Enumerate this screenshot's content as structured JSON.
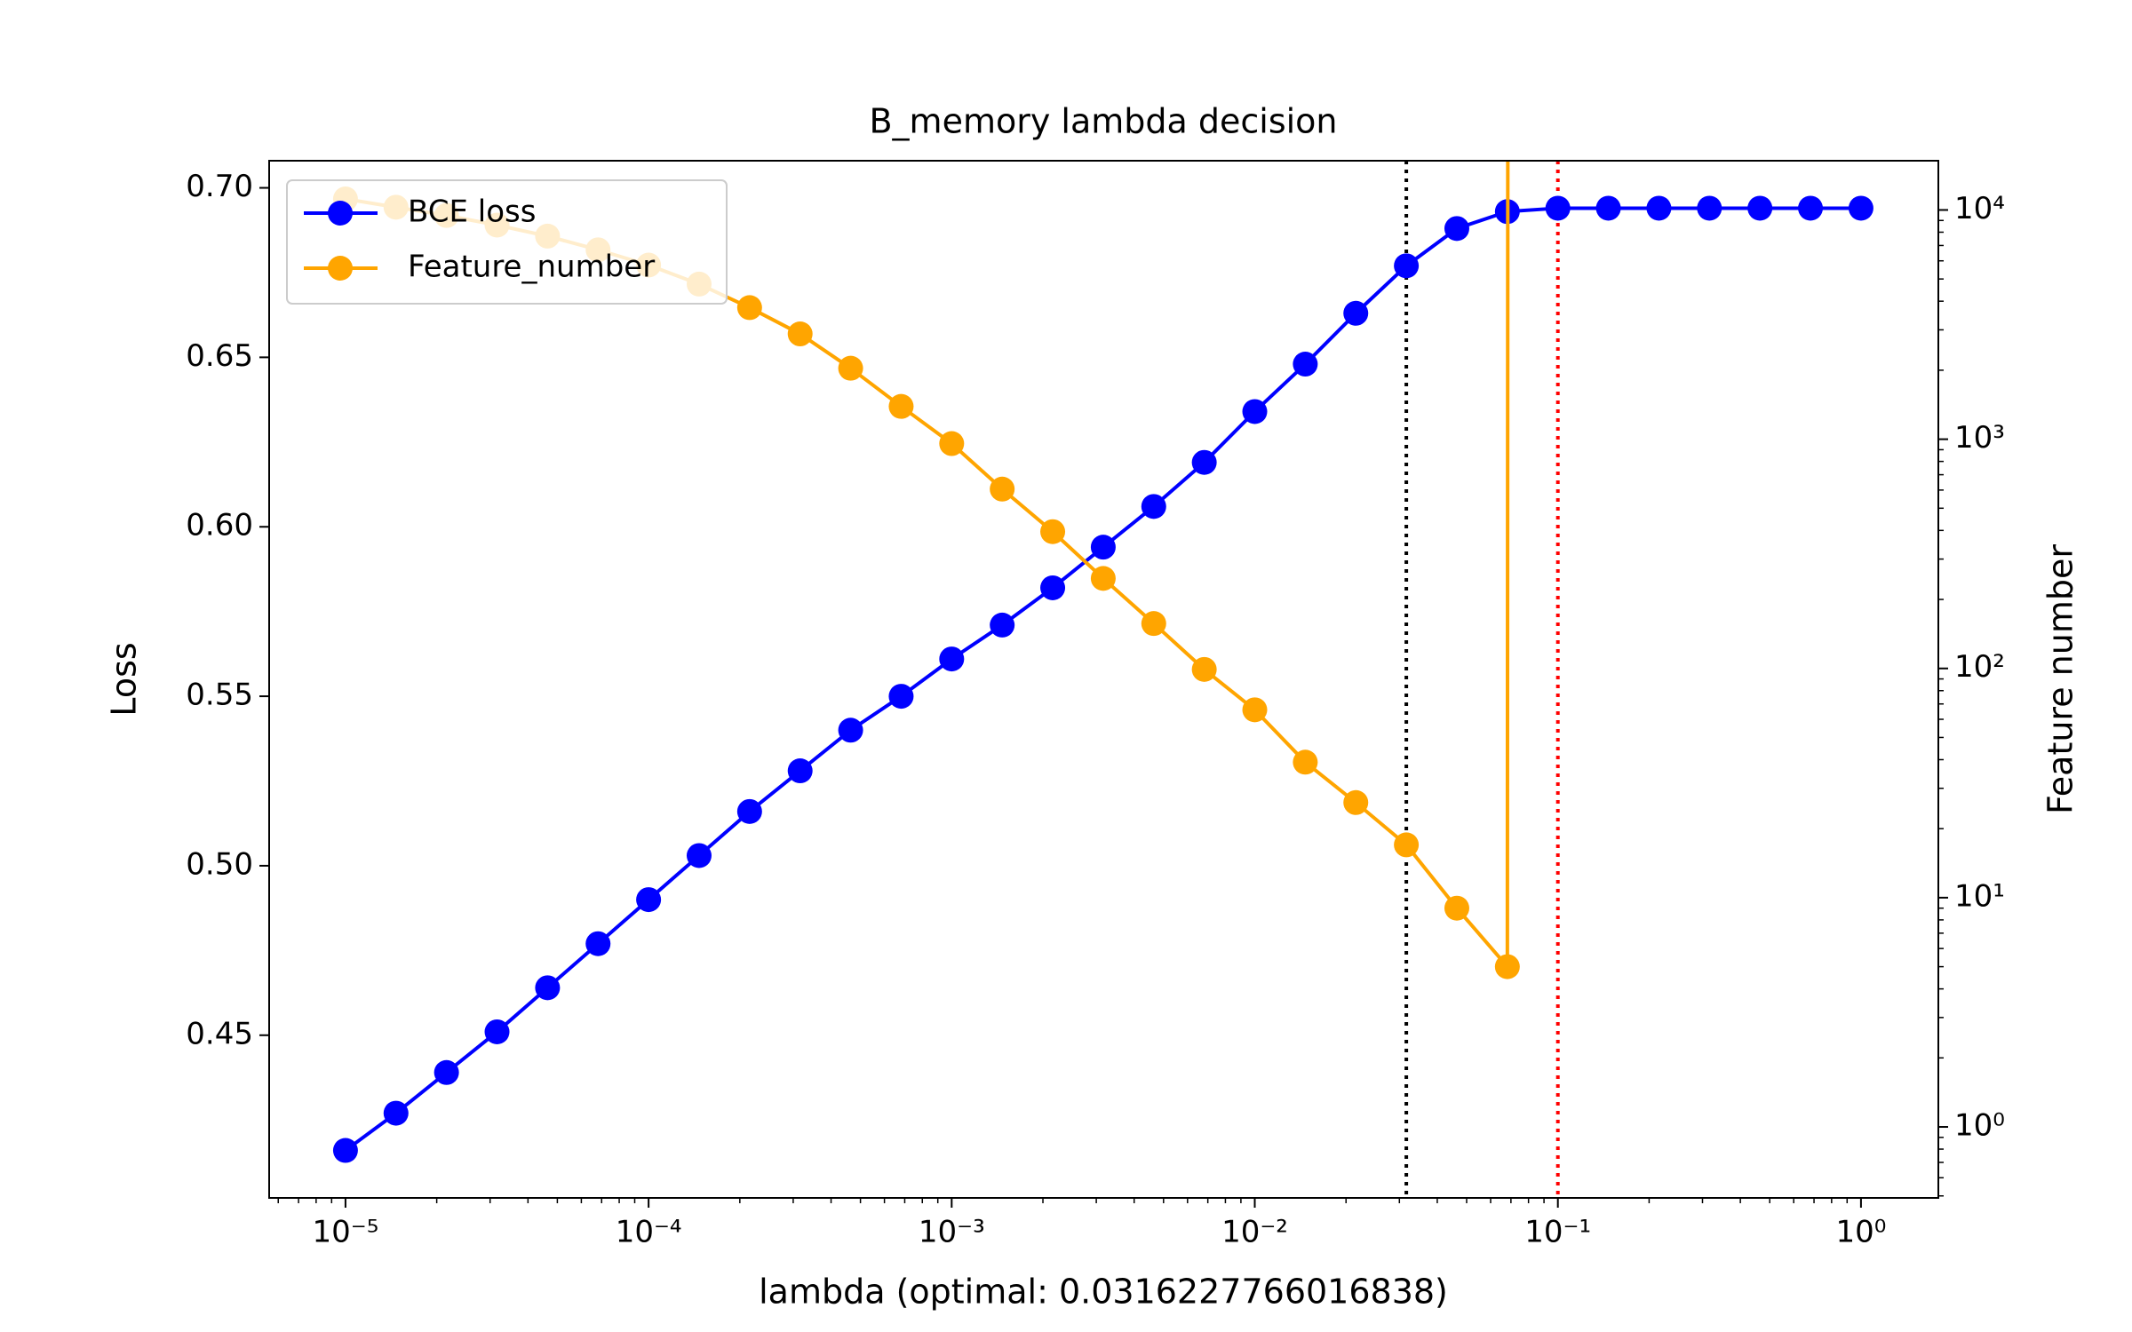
{
  "chart_data": {
    "type": "line",
    "title": "B_memory lambda decision",
    "x_label": "lambda (optimal: 0.0316227766016838)",
    "y_label": "Loss",
    "y2_label": "Feature number",
    "x": [
      1e-05,
      1.4678e-05,
      2.1544e-05,
      3.1623e-05,
      4.6416e-05,
      6.8129e-05,
      0.0001,
      0.00014678,
      0.00021544,
      0.00031623,
      0.00046416,
      0.00068129,
      0.001,
      0.0014678,
      0.0021544,
      0.0031623,
      0.0046416,
      0.0068129,
      0.01,
      0.014678,
      0.021544,
      0.031623,
      0.046416,
      0.068129,
      0.1,
      0.14678,
      0.21544,
      0.31623,
      0.46416,
      0.68129,
      1
    ],
    "series": [
      {
        "name": "BCE loss",
        "color": "#0000ff",
        "axis": "y",
        "values": [
          0.416,
          0.427,
          0.439,
          0.451,
          0.464,
          0.477,
          0.49,
          0.503,
          0.516,
          0.528,
          0.54,
          0.55,
          0.561,
          0.571,
          0.582,
          0.594,
          0.606,
          0.619,
          0.634,
          0.648,
          0.663,
          0.677,
          0.688,
          0.693,
          0.694,
          0.694,
          0.694,
          0.694,
          0.694,
          0.694,
          0.694
        ]
      },
      {
        "name": "Feature_number",
        "color": "#ffa500",
        "axis": "y2",
        "values": [
          11170,
          10280,
          9460,
          8590,
          7690,
          6700,
          5750,
          4750,
          3750,
          2880,
          2040,
          1390,
          957,
          606,
          395,
          247,
          157,
          99,
          66,
          39,
          26,
          17,
          9,
          5,
          0,
          0,
          0,
          0,
          0,
          0,
          0
        ]
      }
    ],
    "vlines": [
      {
        "x": 0.0316227766016838,
        "color": "#000000"
      },
      {
        "x": 0.1,
        "color": "#ff0000"
      }
    ],
    "x_log": true,
    "xlim": [
      5.6e-06,
      1.8
    ],
    "xticks": [
      {
        "value": 1e-05,
        "label": "10⁻⁵"
      },
      {
        "value": 0.0001,
        "label": "10⁻⁴"
      },
      {
        "value": 0.001,
        "label": "10⁻³"
      },
      {
        "value": 0.01,
        "label": "10⁻²"
      },
      {
        "value": 0.1,
        "label": "10⁻¹"
      },
      {
        "value": 1,
        "label": "10⁰"
      }
    ],
    "ylim": [
      0.402,
      0.708
    ],
    "yticks": [
      0.45,
      {
        "value": 0.5,
        "label": "0.50"
      },
      0.55,
      {
        "value": 0.6,
        "label": "0.60"
      },
      0.65,
      {
        "value": 0.7,
        "label": "0.70"
      }
    ],
    "y2_log": true,
    "y2lim": [
      0.49,
      16400
    ],
    "y2ticks": [
      {
        "value": 1,
        "label": "10⁰"
      },
      {
        "value": 10,
        "label": "10¹"
      },
      {
        "value": 100,
        "label": "10²"
      },
      {
        "value": 1000,
        "label": "10³"
      },
      {
        "value": 10000,
        "label": "10⁴"
      }
    ],
    "minor_ticks": true,
    "grid": false,
    "legend": "upper left"
  }
}
